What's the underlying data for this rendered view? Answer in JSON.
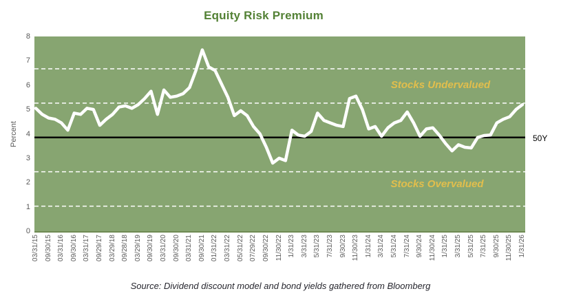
{
  "title": "Equity Risk Premium",
  "reference_label": "50Y",
  "annotations": {
    "undervalued": "Stocks Undervalued",
    "overvalued": "Stocks Overvalued"
  },
  "source_note": "Source: Dividend discount model and bond yields gathered from Bloomberg",
  "colors": {
    "title_text": "#538135",
    "plot_background": "#87A571",
    "plot_bottom_border": "#6E8A52",
    "series_line": "#FFFFFF",
    "average_line": "#000000",
    "dashed_band_line": "#FFFFFF",
    "annotation_text": "#E2BE4C",
    "axis_text": "#595959",
    "source_text": "#26262E"
  },
  "chart_data": {
    "type": "line",
    "title": "Equity Risk Premium",
    "xlabel": "",
    "ylabel": "Percent",
    "ylim": [
      0,
      8
    ],
    "y_ticks": [
      0,
      1,
      2,
      3,
      4,
      5,
      6,
      7,
      8
    ],
    "grid": "horizontal-dashed-white-bands",
    "legend_position": "none",
    "x_labels_every_n_points": 2,
    "x_labels": [
      "03/31/15",
      "09/30/15",
      "03/31/16",
      "09/30/16",
      "03/31/17",
      "09/29/17",
      "03/29/18",
      "09/28/18",
      "03/29/19",
      "09/30/19",
      "03/31/20",
      "09/30/20",
      "03/31/21",
      "09/30/21",
      "01/31/22",
      "03/31/22",
      "05/31/22",
      "07/29/22",
      "09/30/22",
      "11/30/22",
      "1/31/23",
      "3/31/23",
      "5/31/23",
      "7/31/23",
      "9/30/23",
      "11/30/23",
      "1/31/24",
      "3/31/24",
      "5/31/24",
      "7/31/24",
      "9/30/24",
      "11/30/24",
      "1/31/25",
      "3/31/25",
      "5/31/25",
      "7/31/25",
      "9/30/25",
      "11/30/25",
      "1/31/26"
    ],
    "series": [
      {
        "name": "Equity Risk Premium (percent)",
        "values": [
          5.05,
          4.8,
          4.65,
          4.6,
          4.45,
          4.15,
          4.85,
          4.8,
          5.05,
          5.0,
          4.35,
          4.6,
          4.8,
          5.1,
          5.15,
          5.05,
          5.2,
          5.45,
          5.75,
          4.8,
          5.8,
          5.5,
          5.55,
          5.65,
          5.9,
          6.6,
          7.45,
          6.75,
          6.6,
          6.05,
          5.5,
          4.75,
          4.95,
          4.75,
          4.3,
          4.0,
          3.45,
          2.8,
          3.0,
          2.9,
          4.15,
          3.95,
          3.9,
          4.1,
          4.85,
          4.55,
          4.45,
          4.35,
          4.3,
          5.45,
          5.55,
          5.0,
          4.2,
          4.3,
          3.9,
          4.25,
          4.45,
          4.55,
          4.9,
          4.45,
          3.9,
          4.2,
          4.25,
          3.95,
          3.6,
          3.3,
          3.55,
          3.45,
          3.42,
          3.85,
          3.93,
          3.95,
          4.45,
          4.6,
          4.7,
          5.0,
          5.2
        ]
      }
    ],
    "reference_lines": {
      "fifty_year_average": 3.85,
      "dashed_bands": [
        6.67,
        5.26,
        2.44,
        1.03
      ]
    }
  }
}
